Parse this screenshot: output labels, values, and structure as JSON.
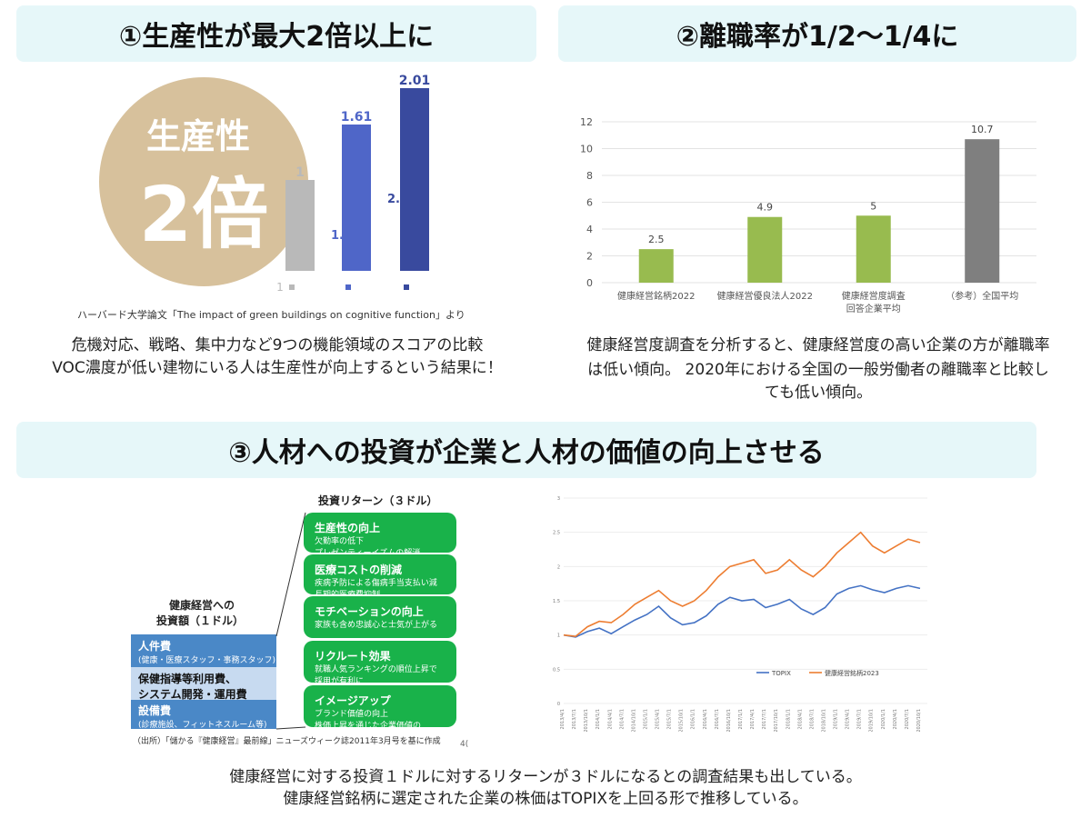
{
  "section1": {
    "header": "①生産性が最大2倍以上に",
    "circle_line1": "生産性",
    "circle_line2": "2倍",
    "source": "ハーバード大学論文「The impact of green buildings on cognitive function」より",
    "desc_line1": "危機対応、戦略、集中力など9つの機能領域のスコアの比較",
    "desc_line2": "VOC濃度が低い建物にいる人は生産性が向上するという結果に！"
  },
  "section2": {
    "header": "②離職率が1/2〜1/4に",
    "desc_line1": "健康経営度調査を分析すると、健康経営度の高い企業の方が離職率",
    "desc_line2": "は低い傾向。 2020年における全国の一般労働者の離職率と比較し",
    "desc_line3": "ても低い傾向。"
  },
  "section3": {
    "header": "③人材への投資が企業と人材の価値の向上させる",
    "returns_title": "投資リターン（３ドル）",
    "invest_title_line1": "健康経営への",
    "invest_title_line2": "投資額（１ドル）",
    "invest_items": [
      {
        "title": "人件費",
        "sub": "(健康・医療スタッフ・事務スタッフ)"
      },
      {
        "title": "保健指導等利用費、",
        "sub": "システム開発・運用費"
      },
      {
        "title": "設備費",
        "sub": "(診療施設、フィットネスルーム等)"
      }
    ],
    "return_items": [
      {
        "title": "生産性の向上",
        "sub1": "欠勤率の低下",
        "sub2": "プレゼンティーイズムの解消"
      },
      {
        "title": "医療コストの削減",
        "sub1": "疾病予防による傷病手当支払い減",
        "sub2": "長期的医療費抑制"
      },
      {
        "title": "モチベーションの向上",
        "sub1": "家族も含め忠誠心と士気が上がる",
        "sub2": ""
      },
      {
        "title": "リクルート効果",
        "sub1": "就職人気ランキングの順位上昇で",
        "sub2": "採用が有利に"
      },
      {
        "title": "イメージアップ",
        "sub1": "ブランド価値の向上",
        "sub2": "株価上昇を通じた企業価値の"
      }
    ],
    "diagram_source": "（出所）「儲かる『健康経営』最前線」ニューズウィーク誌2011年3月号を基に作成",
    "page_fragment": "4(",
    "desc_line1": "健康経営に対する投資１ドルに対するリターンが３ドルになるとの調査結果も出している。",
    "desc_line2": "健康経営銘柄に選定された企業の株価はTOPIXを上回る形で推移している。"
  },
  "colors": {
    "header_bg": "#e6f7f9",
    "gray_bar": "#b9b9b9",
    "blue_mid": "#4f66c8",
    "blue_dark": "#394a9e",
    "green_bar": "#98bb4f",
    "gray_dark": "#7f7f7f",
    "topix_line": "#4472c4",
    "kenko_line": "#ed7d31",
    "return_green": "#19b24a",
    "invest_blue": "#4a88c7",
    "invest_light": "#c7daf0"
  },
  "chart_data": [
    {
      "type": "bar",
      "title": "",
      "categories": [
        "1",
        "",
        ""
      ],
      "values": [
        1,
        1.61,
        2.01
      ],
      "data_labels": [
        "1",
        "1.61",
        "2.01"
      ],
      "partial_labels": [
        "1.",
        "2."
      ],
      "ylim": [
        0,
        2.2
      ]
    },
    {
      "type": "bar",
      "title": "",
      "categories": [
        "健康経営銘柄2022",
        "健康経営優良法人2022",
        "健康経営度調査",
        "（参考）全国平均"
      ],
      "category_sub": [
        "",
        "",
        "回答企業平均",
        ""
      ],
      "values": [
        2.5,
        4.9,
        5,
        10.7
      ],
      "data_labels": [
        "2.5",
        "4.9",
        "5",
        "10.7"
      ],
      "ylim": [
        0,
        12
      ],
      "yticks": [
        "0",
        "2",
        "4",
        "6",
        "8",
        "10",
        "12"
      ],
      "grid": true
    },
    {
      "type": "line",
      "ylim": [
        0,
        3
      ],
      "yticks": [
        "0",
        "0.5",
        "1",
        "1.5",
        "2",
        "2.5",
        "3"
      ],
      "legend": "bottom-center",
      "grid": true,
      "series": [
        {
          "name": "TOPIX",
          "values": [
            1.0,
            0.97,
            1.05,
            1.1,
            1.02,
            1.12,
            1.22,
            1.3,
            1.42,
            1.25,
            1.15,
            1.18,
            1.28,
            1.45,
            1.55,
            1.5,
            1.52,
            1.4,
            1.45,
            1.52,
            1.38,
            1.3,
            1.4,
            1.6,
            1.68,
            1.72,
            1.66,
            1.62,
            1.68,
            1.72,
            1.68
          ]
        },
        {
          "name": "健康経営銘柄2023",
          "values": [
            1.0,
            0.98,
            1.12,
            1.2,
            1.18,
            1.3,
            1.45,
            1.55,
            1.65,
            1.5,
            1.42,
            1.5,
            1.65,
            1.85,
            2.0,
            2.05,
            2.1,
            1.9,
            1.95,
            2.1,
            1.95,
            1.85,
            2.0,
            2.2,
            2.35,
            2.5,
            2.3,
            2.2,
            2.3,
            2.4,
            2.35
          ]
        }
      ],
      "x_tick_labels": [
        "2013/4/1",
        "2013/7/1",
        "2013/10/1",
        "2014/1/1",
        "2014/4/1",
        "2014/7/1",
        "2014/10/1",
        "2015/1/1",
        "2015/4/1",
        "2015/7/1",
        "2015/10/1",
        "2016/1/1",
        "2016/4/1",
        "2016/7/1",
        "2016/10/1",
        "2017/1/1",
        "2017/4/1",
        "2017/7/1",
        "2017/10/1",
        "2018/1/1",
        "2018/4/1",
        "2018/7/1",
        "2018/10/1",
        "2019/1/1",
        "2019/4/1",
        "2019/7/1",
        "2019/10/1",
        "2020/1/1",
        "2020/4/1",
        "2020/7/1",
        "2020/10/1"
      ]
    }
  ]
}
